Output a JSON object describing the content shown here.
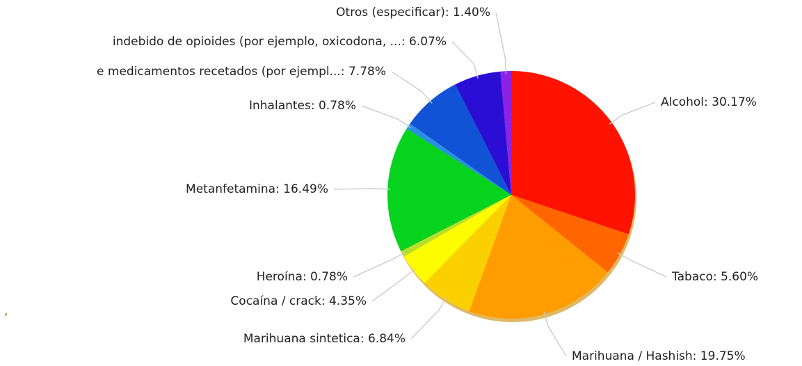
{
  "chart_data": {
    "type": "pie",
    "categories": [
      "Alcohol",
      "Tabaco",
      "Marihuana / Hashish",
      "Marihuana sintetica",
      "Cocaína / crack",
      "Heroína",
      "Metanfetamina",
      "Inhalantes",
      "e medicamentos recetados (por ejempl...",
      "indebido de opioides (por ejemplo, oxicodona, ...",
      "Otros (especificar)"
    ],
    "values": [
      30.17,
      5.6,
      19.75,
      6.84,
      4.35,
      0.78,
      16.49,
      0.78,
      7.78,
      6.07,
      1.4
    ],
    "value_labels": [
      "Alcohol: 30.17%",
      "Tabaco: 5.60%",
      "Marihuana / Hashish: 19.75%",
      "Marihuana sintetica: 6.84%",
      "Cocaína / crack: 4.35%",
      "Heroína: 0.78%",
      "Metanfetamina: 16.49%",
      "Inhalantes: 0.78%",
      "e medicamentos recetados (por ejempl...: 7.78%",
      "indebido de opioides (por ejemplo, oxicodona, ...: 6.07%",
      "Otros (especificar): 1.40%"
    ],
    "colors": [
      "#ff1300",
      "#ff6600",
      "#ff9d00",
      "#fbd000",
      "#fdfc00",
      "#b8e02a",
      "#06d31e",
      "#2a8fe6",
      "#1053d6",
      "#2a0ed4",
      "#8d22e6"
    ],
    "note": ","
  }
}
